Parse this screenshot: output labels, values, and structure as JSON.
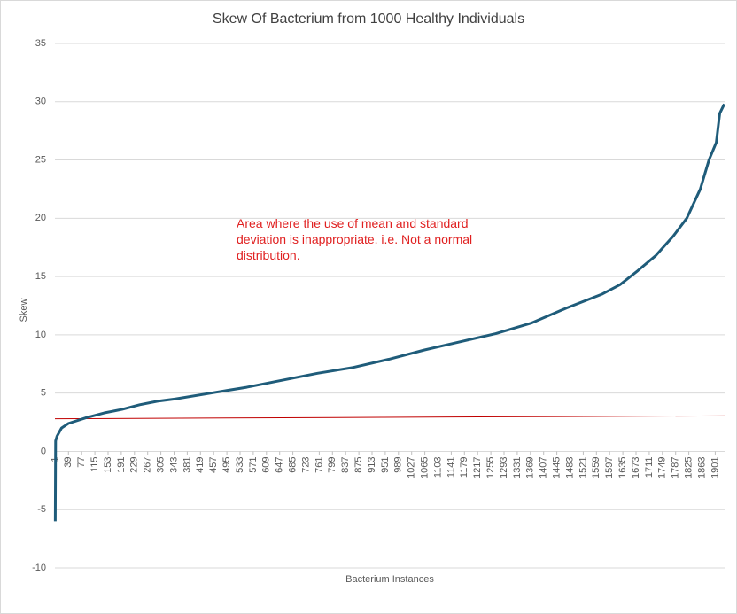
{
  "chart_data": {
    "type": "line",
    "title": "Skew  Of Bacterium  from 1000 Healthy Individuals",
    "x_label": "Bacterium Instances",
    "y_label": "Skew",
    "annotation": "Area where the use of mean and standard deviation is inappropriate. i.e. Not a normal distribution.",
    "annotation_color": "#e02020",
    "xlim": [
      0,
      1928
    ],
    "xticks": [
      1,
      39,
      77,
      115,
      153,
      191,
      229,
      267,
      305,
      343,
      381,
      419,
      457,
      495,
      533,
      571,
      609,
      647,
      685,
      723,
      761,
      799,
      837,
      875,
      913,
      951,
      989,
      1027,
      1065,
      1103,
      1141,
      1179,
      1217,
      1255,
      1293,
      1331,
      1369,
      1407,
      1445,
      1483,
      1521,
      1559,
      1597,
      1635,
      1673,
      1711,
      1749,
      1787,
      1825,
      1863,
      1901
    ],
    "ylim": [
      -10,
      35
    ],
    "yticks": [
      -10,
      -5,
      0,
      5,
      10,
      15,
      20,
      25,
      30,
      35
    ],
    "grid": true,
    "series": [
      {
        "color": "#1f5c7a",
        "width": 3,
        "x": [
          1,
          2,
          6,
          19,
          39,
          91,
          142,
          193,
          244,
          295,
          347,
          449,
          552,
          654,
          756,
          859,
          961,
          1064,
          1166,
          1269,
          1371,
          1473,
          1576,
          1627,
          1678,
          1730,
          1781,
          1819,
          1858,
          1883,
          1904,
          1914,
          1927
        ],
        "values": [
          -6,
          0.9,
          1.3,
          2.0,
          2.4,
          2.9,
          3.3,
          3.6,
          4.0,
          4.3,
          4.5,
          5.0,
          5.5,
          6.1,
          6.7,
          7.2,
          7.9,
          8.7,
          9.4,
          10.1,
          11.0,
          12.3,
          13.5,
          14.3,
          15.5,
          16.8,
          18.5,
          20.0,
          22.5,
          25.0,
          26.5,
          29.0,
          29.8
        ]
      },
      {
        "color": "#c00000",
        "width": 1,
        "x": [
          0,
          1928
        ],
        "values": [
          2.8,
          3.05
        ]
      }
    ]
  }
}
